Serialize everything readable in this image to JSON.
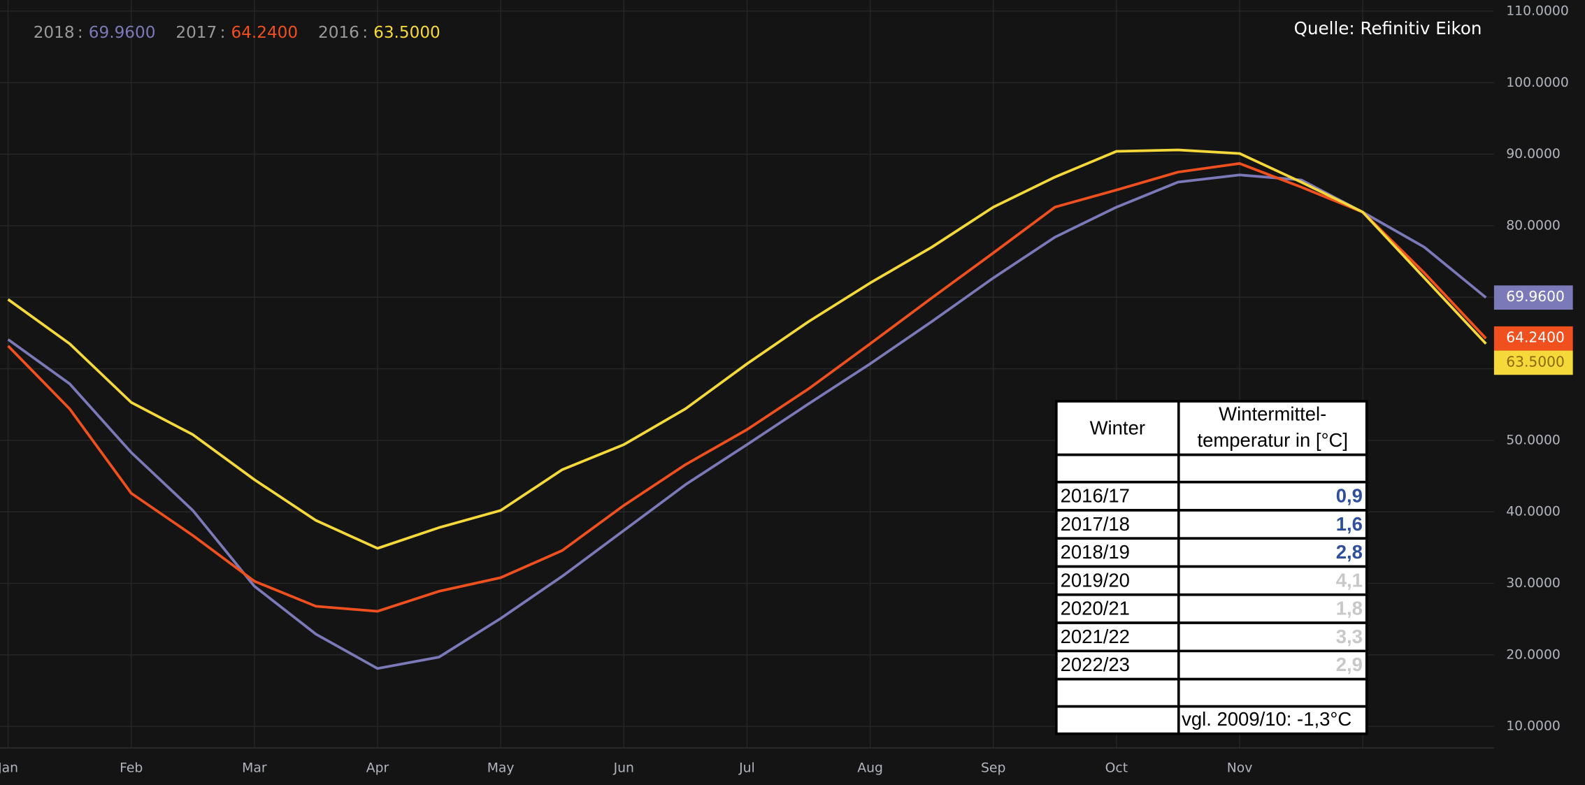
{
  "chart_data": {
    "type": "line",
    "source": "Quelle: Refinitiv Eikon",
    "categories": [
      "Jan",
      null,
      "Feb",
      null,
      "Mar",
      null,
      "Apr",
      null,
      "May",
      null,
      "Jun",
      null,
      "Jul",
      null,
      "Aug",
      null,
      "Sep",
      null,
      "Oct",
      null,
      "Nov",
      null,
      null,
      null,
      null
    ],
    "series": [
      {
        "name": "2018",
        "color": "#7b79b8",
        "values": [
          64.1,
          57.9,
          48.3,
          40.2,
          29.6,
          22.9,
          18.1,
          19.7,
          25.1,
          31.0,
          37.4,
          43.8,
          49.4,
          55.1,
          60.7,
          66.6,
          72.7,
          78.4,
          82.6,
          86.1,
          87.1,
          86.4,
          81.9,
          77.0,
          69.96
        ],
        "value_labels": [
          null,
          null,
          null,
          null,
          null,
          null,
          null,
          null,
          null,
          null,
          null,
          null,
          null,
          null,
          null,
          null,
          null,
          null,
          null,
          null,
          null,
          null,
          null,
          null,
          "69.9600"
        ]
      },
      {
        "name": "2017",
        "color": "#f0501e",
        "values": [
          63.2,
          54.4,
          42.6,
          36.7,
          30.3,
          26.8,
          26.1,
          28.9,
          30.8,
          34.6,
          40.9,
          46.6,
          51.5,
          57.2,
          63.5,
          69.9,
          76.2,
          82.6,
          85.0,
          87.5,
          88.7,
          85.4,
          81.9,
          73.4,
          64.24
        ],
        "value_labels": [
          null,
          null,
          null,
          null,
          null,
          null,
          null,
          null,
          null,
          null,
          null,
          null,
          null,
          null,
          null,
          null,
          null,
          null,
          null,
          null,
          null,
          null,
          null,
          null,
          "64.2400"
        ]
      },
      {
        "name": "2016",
        "color": "#f5d93a",
        "values": [
          69.7,
          63.5,
          55.3,
          50.8,
          44.5,
          38.8,
          34.9,
          37.8,
          40.2,
          45.9,
          49.4,
          54.4,
          60.7,
          66.6,
          72.0,
          77.0,
          82.6,
          86.8,
          90.4,
          90.6,
          90.1,
          86.1,
          81.9,
          72.7,
          63.5
        ],
        "value_labels": [
          null,
          null,
          null,
          null,
          null,
          null,
          null,
          null,
          null,
          null,
          null,
          null,
          null,
          null,
          null,
          null,
          null,
          null,
          null,
          null,
          null,
          null,
          null,
          null,
          "63.5000"
        ]
      }
    ],
    "ylim": [
      7,
      111.5
    ],
    "yticks": [
      {
        "value": 10,
        "label": "10.0000"
      },
      {
        "value": 20,
        "label": "20.0000"
      },
      {
        "value": 30,
        "label": "30.0000"
      },
      {
        "value": 40,
        "label": "40.0000"
      },
      {
        "value": 50,
        "label": "50.0000"
      },
      {
        "value": 60,
        "label": "60.0000"
      },
      {
        "value": 70,
        "label": "70.0000"
      },
      {
        "value": 80,
        "label": "80.0000"
      },
      {
        "value": 90,
        "label": "90.0000"
      },
      {
        "value": 100,
        "label": "100.0000"
      },
      {
        "value": 110,
        "label": "110.0000"
      }
    ],
    "grid": true
  },
  "table": {
    "header": [
      "Winter",
      [
        "Wintermittel-",
        "temperatur in [°C]"
      ]
    ],
    "rows": [
      [
        "2016/17",
        "0,9"
      ],
      [
        "2017/18",
        "1,6"
      ],
      [
        "2018/19",
        "2,8"
      ],
      [
        "2019/20",
        "4,1"
      ],
      [
        "2020/21",
        "1,8"
      ],
      [
        "2021/22",
        "3,3"
      ],
      [
        "2022/23",
        "2,9"
      ]
    ],
    "value_colors": [
      "#2f4f9e",
      "#2f4f9e",
      "#2f4f9e",
      "#c8c8c8",
      "#c8c8c8",
      "#c8c8c8",
      "#c8c8c8"
    ],
    "note": "vgl. 2009/10: -1,3°C"
  }
}
